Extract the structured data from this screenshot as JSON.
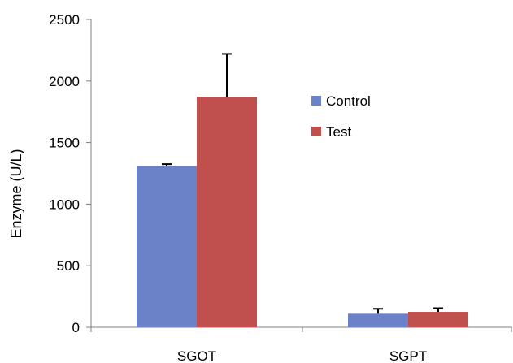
{
  "chart_data": {
    "type": "bar",
    "title": "",
    "xlabel": "",
    "ylabel": "Enzyme (U/L)",
    "ylim": [
      0,
      2500
    ],
    "yticks": [
      0,
      500,
      1000,
      1500,
      2000,
      2500
    ],
    "grid": false,
    "legend_position": "right",
    "categories": [
      "SGOT",
      "SGPT"
    ],
    "series": [
      {
        "name": "Control",
        "color": "#6B82C8",
        "values": [
          1310,
          110
        ],
        "errors": [
          15,
          40
        ]
      },
      {
        "name": "Test",
        "color": "#C0504D",
        "values": [
          1870,
          125
        ],
        "errors": [
          350,
          30
        ]
      }
    ]
  }
}
